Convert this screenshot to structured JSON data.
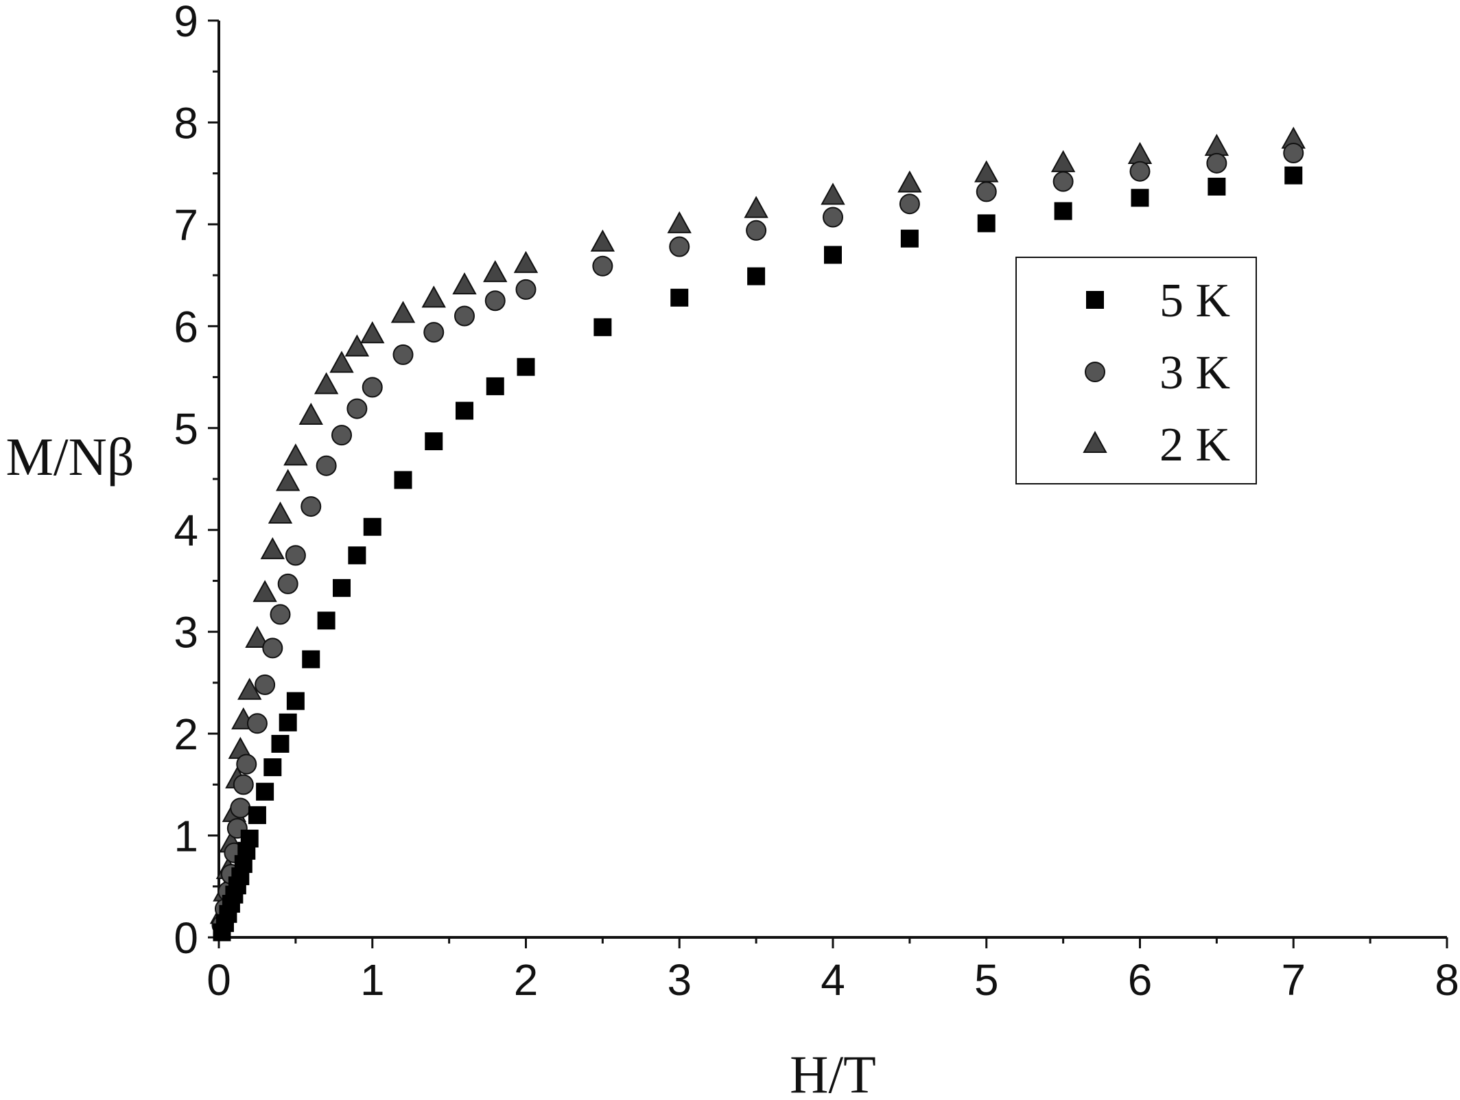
{
  "chart_data": {
    "type": "scatter",
    "xlabel": "H/T",
    "ylabel": "M/Nβ",
    "xlim": [
      0,
      8
    ],
    "ylim": [
      0,
      9
    ],
    "x_ticks": [
      0,
      1,
      2,
      3,
      4,
      5,
      6,
      7,
      8
    ],
    "y_ticks": [
      0,
      1,
      2,
      3,
      4,
      5,
      6,
      7,
      8,
      9
    ],
    "grid": false,
    "legend_position": "right",
    "series": [
      {
        "name": "5 K",
        "marker": "square",
        "color": "#000000",
        "points": [
          [
            0.02,
            0.05
          ],
          [
            0.04,
            0.14
          ],
          [
            0.06,
            0.23
          ],
          [
            0.08,
            0.33
          ],
          [
            0.1,
            0.42
          ],
          [
            0.12,
            0.51
          ],
          [
            0.14,
            0.6
          ],
          [
            0.16,
            0.72
          ],
          [
            0.18,
            0.85
          ],
          [
            0.2,
            0.97
          ],
          [
            0.25,
            1.2
          ],
          [
            0.3,
            1.43
          ],
          [
            0.35,
            1.67
          ],
          [
            0.4,
            1.9
          ],
          [
            0.45,
            2.11
          ],
          [
            0.5,
            2.32
          ],
          [
            0.6,
            2.73
          ],
          [
            0.7,
            3.11
          ],
          [
            0.8,
            3.43
          ],
          [
            0.9,
            3.75
          ],
          [
            1.0,
            4.03
          ],
          [
            1.2,
            4.49
          ],
          [
            1.4,
            4.87
          ],
          [
            1.6,
            5.17
          ],
          [
            1.8,
            5.41
          ],
          [
            2.0,
            5.6
          ],
          [
            2.5,
            5.99
          ],
          [
            3.0,
            6.28
          ],
          [
            3.5,
            6.49
          ],
          [
            4.0,
            6.7
          ],
          [
            4.5,
            6.86
          ],
          [
            5.0,
            7.01
          ],
          [
            5.5,
            7.13
          ],
          [
            6.0,
            7.26
          ],
          [
            6.5,
            7.37
          ],
          [
            7.0,
            7.48
          ]
        ]
      },
      {
        "name": "3 K",
        "marker": "circle",
        "color": "#555555",
        "points": [
          [
            0.02,
            0.12
          ],
          [
            0.04,
            0.28
          ],
          [
            0.06,
            0.45
          ],
          [
            0.08,
            0.62
          ],
          [
            0.1,
            0.83
          ],
          [
            0.12,
            1.07
          ],
          [
            0.14,
            1.27
          ],
          [
            0.16,
            1.5
          ],
          [
            0.18,
            1.7
          ],
          [
            0.25,
            2.1
          ],
          [
            0.3,
            2.48
          ],
          [
            0.35,
            2.84
          ],
          [
            0.4,
            3.17
          ],
          [
            0.45,
            3.47
          ],
          [
            0.5,
            3.75
          ],
          [
            0.6,
            4.23
          ],
          [
            0.7,
            4.63
          ],
          [
            0.8,
            4.93
          ],
          [
            0.9,
            5.19
          ],
          [
            1.0,
            5.4
          ],
          [
            1.2,
            5.72
          ],
          [
            1.4,
            5.94
          ],
          [
            1.6,
            6.1
          ],
          [
            1.8,
            6.25
          ],
          [
            2.0,
            6.36
          ],
          [
            2.5,
            6.59
          ],
          [
            3.0,
            6.78
          ],
          [
            3.5,
            6.94
          ],
          [
            4.0,
            7.07
          ],
          [
            4.5,
            7.2
          ],
          [
            5.0,
            7.32
          ],
          [
            5.5,
            7.42
          ],
          [
            6.0,
            7.52
          ],
          [
            6.5,
            7.6
          ],
          [
            7.0,
            7.7
          ]
        ]
      },
      {
        "name": "2 K",
        "marker": "triangle",
        "color": "#444444",
        "points": [
          [
            0.02,
            0.22
          ],
          [
            0.04,
            0.44
          ],
          [
            0.06,
            0.66
          ],
          [
            0.08,
            0.92
          ],
          [
            0.1,
            1.22
          ],
          [
            0.12,
            1.55
          ],
          [
            0.14,
            1.84
          ],
          [
            0.16,
            2.13
          ],
          [
            0.2,
            2.42
          ],
          [
            0.25,
            2.93
          ],
          [
            0.3,
            3.38
          ],
          [
            0.35,
            3.8
          ],
          [
            0.4,
            4.15
          ],
          [
            0.45,
            4.47
          ],
          [
            0.5,
            4.72
          ],
          [
            0.6,
            5.12
          ],
          [
            0.7,
            5.42
          ],
          [
            0.8,
            5.63
          ],
          [
            0.9,
            5.79
          ],
          [
            1.0,
            5.92
          ],
          [
            1.2,
            6.12
          ],
          [
            1.4,
            6.27
          ],
          [
            1.6,
            6.4
          ],
          [
            1.8,
            6.52
          ],
          [
            2.0,
            6.61
          ],
          [
            2.5,
            6.82
          ],
          [
            3.0,
            7.0
          ],
          [
            3.5,
            7.15
          ],
          [
            4.0,
            7.28
          ],
          [
            4.5,
            7.4
          ],
          [
            5.0,
            7.5
          ],
          [
            5.5,
            7.6
          ],
          [
            6.0,
            7.68
          ],
          [
            6.5,
            7.76
          ],
          [
            7.0,
            7.83
          ]
        ]
      }
    ]
  }
}
